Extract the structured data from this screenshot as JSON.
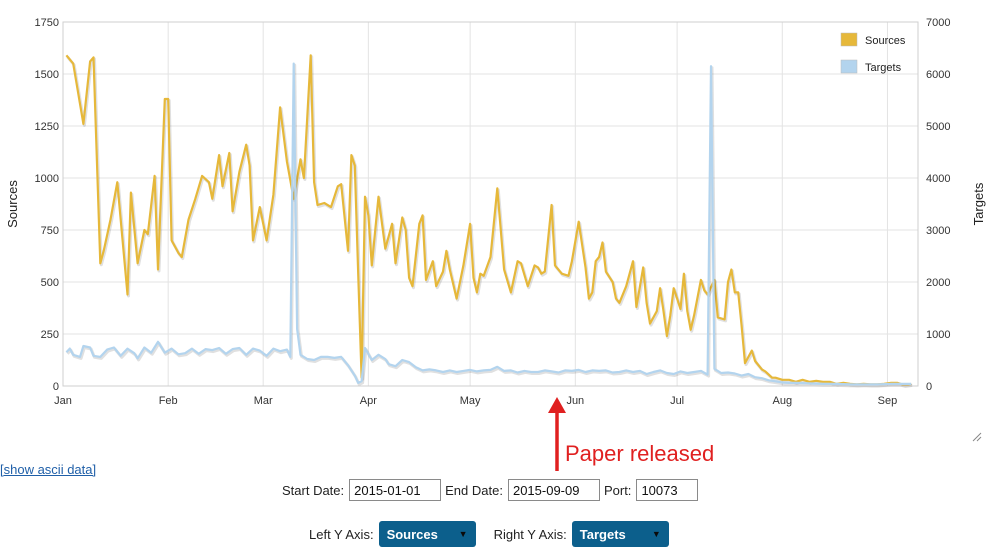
{
  "chart_data": {
    "type": "line",
    "dual_axis": true,
    "x_start": "2015-01-01",
    "x_end": "2015-09-09",
    "x_tick_labels": [
      "Jan",
      "Feb",
      "Mar",
      "Apr",
      "May",
      "Jun",
      "Jul",
      "Aug",
      "Sep"
    ],
    "left_axis": {
      "label": "Sources",
      "ylim": [
        0,
        1750
      ],
      "ticks": [
        "0",
        "250",
        "500",
        "750",
        "1000",
        "1250",
        "1500",
        "1750"
      ]
    },
    "right_axis": {
      "label": "Targets",
      "ylim": [
        0,
        7000
      ],
      "ticks": [
        "0",
        "1000",
        "2000",
        "3000",
        "4000",
        "5000",
        "6000",
        "7000"
      ]
    },
    "grid": true,
    "legend_position": "top-right",
    "series": [
      {
        "name": "Sources",
        "axis": "left",
        "color": "#e6b83a",
        "values": [
          [
            1,
            1590
          ],
          [
            3,
            1550
          ],
          [
            6,
            1260
          ],
          [
            8,
            1560
          ],
          [
            9,
            1580
          ],
          [
            11,
            590
          ],
          [
            12,
            650
          ],
          [
            14,
            800
          ],
          [
            16,
            980
          ],
          [
            19,
            440
          ],
          [
            20,
            930
          ],
          [
            22,
            590
          ],
          [
            24,
            750
          ],
          [
            25,
            730
          ],
          [
            27,
            1010
          ],
          [
            28,
            560
          ],
          [
            30,
            1380
          ],
          [
            31,
            1380
          ],
          [
            32,
            700
          ],
          [
            34,
            640
          ],
          [
            35,
            620
          ],
          [
            37,
            800
          ],
          [
            39,
            900
          ],
          [
            41,
            1010
          ],
          [
            43,
            980
          ],
          [
            44,
            900
          ],
          [
            46,
            1110
          ],
          [
            47,
            960
          ],
          [
            49,
            1120
          ],
          [
            50,
            840
          ],
          [
            52,
            1030
          ],
          [
            54,
            1160
          ],
          [
            55,
            1060
          ],
          [
            56,
            700
          ],
          [
            58,
            860
          ],
          [
            60,
            700
          ],
          [
            62,
            920
          ],
          [
            64,
            1340
          ],
          [
            66,
            1080
          ],
          [
            68,
            900
          ],
          [
            70,
            1090
          ],
          [
            71,
            1000
          ],
          [
            73,
            1590
          ],
          [
            74,
            980
          ],
          [
            75,
            870
          ],
          [
            77,
            880
          ],
          [
            79,
            860
          ],
          [
            81,
            960
          ],
          [
            82,
            970
          ],
          [
            84,
            650
          ],
          [
            85,
            1110
          ],
          [
            86,
            1060
          ],
          [
            87,
            540
          ],
          [
            88,
            40
          ],
          [
            89,
            910
          ],
          [
            90,
            820
          ],
          [
            91,
            580
          ],
          [
            93,
            910
          ],
          [
            95,
            660
          ],
          [
            97,
            780
          ],
          [
            98,
            590
          ],
          [
            100,
            810
          ],
          [
            101,
            750
          ],
          [
            102,
            520
          ],
          [
            103,
            480
          ],
          [
            105,
            780
          ],
          [
            106,
            820
          ],
          [
            107,
            510
          ],
          [
            109,
            600
          ],
          [
            110,
            480
          ],
          [
            112,
            550
          ],
          [
            113,
            650
          ],
          [
            114,
            560
          ],
          [
            116,
            420
          ],
          [
            118,
            580
          ],
          [
            120,
            780
          ],
          [
            121,
            520
          ],
          [
            122,
            450
          ],
          [
            123,
            540
          ],
          [
            124,
            530
          ],
          [
            126,
            620
          ],
          [
            128,
            950
          ],
          [
            130,
            560
          ],
          [
            132,
            450
          ],
          [
            134,
            600
          ],
          [
            135,
            590
          ],
          [
            137,
            480
          ],
          [
            139,
            580
          ],
          [
            140,
            570
          ],
          [
            141,
            540
          ],
          [
            142,
            550
          ],
          [
            144,
            870
          ],
          [
            145,
            580
          ],
          [
            147,
            540
          ],
          [
            149,
            530
          ],
          [
            150,
            600
          ],
          [
            152,
            790
          ],
          [
            154,
            570
          ],
          [
            155,
            420
          ],
          [
            156,
            450
          ],
          [
            157,
            600
          ],
          [
            158,
            620
          ],
          [
            159,
            690
          ],
          [
            160,
            550
          ],
          [
            162,
            500
          ],
          [
            163,
            420
          ],
          [
            164,
            400
          ],
          [
            166,
            480
          ],
          [
            168,
            600
          ],
          [
            169,
            380
          ],
          [
            171,
            570
          ],
          [
            172,
            400
          ],
          [
            173,
            300
          ],
          [
            175,
            360
          ],
          [
            176,
            470
          ],
          [
            177,
            360
          ],
          [
            178,
            240
          ],
          [
            179,
            340
          ],
          [
            180,
            470
          ],
          [
            182,
            370
          ],
          [
            183,
            540
          ],
          [
            184,
            360
          ],
          [
            185,
            270
          ],
          [
            186,
            340
          ],
          [
            188,
            510
          ],
          [
            189,
            460
          ],
          [
            190,
            440
          ],
          [
            192,
            510
          ],
          [
            193,
            330
          ],
          [
            195,
            320
          ],
          [
            196,
            500
          ],
          [
            197,
            560
          ],
          [
            198,
            450
          ],
          [
            199,
            450
          ],
          [
            200,
            290
          ],
          [
            201,
            110
          ],
          [
            203,
            170
          ],
          [
            204,
            120
          ],
          [
            206,
            80
          ],
          [
            207,
            70
          ],
          [
            209,
            40
          ],
          [
            210,
            40
          ],
          [
            212,
            30
          ],
          [
            214,
            30
          ],
          [
            216,
            20
          ],
          [
            218,
            30
          ],
          [
            220,
            20
          ],
          [
            222,
            25
          ],
          [
            224,
            20
          ],
          [
            226,
            20
          ],
          [
            228,
            10
          ],
          [
            230,
            15
          ],
          [
            232,
            10
          ],
          [
            234,
            8
          ],
          [
            236,
            10
          ],
          [
            238,
            8
          ],
          [
            240,
            8
          ],
          [
            242,
            10
          ],
          [
            244,
            15
          ],
          [
            246,
            15
          ],
          [
            248,
            5
          ],
          [
            250,
            10
          ]
        ]
      },
      {
        "name": "Targets",
        "axis": "right",
        "color": "#b3d4ee",
        "values": [
          [
            1,
            650
          ],
          [
            2,
            720
          ],
          [
            3,
            600
          ],
          [
            5,
            560
          ],
          [
            6,
            770
          ],
          [
            8,
            740
          ],
          [
            9,
            580
          ],
          [
            11,
            560
          ],
          [
            13,
            700
          ],
          [
            15,
            740
          ],
          [
            17,
            580
          ],
          [
            19,
            720
          ],
          [
            21,
            630
          ],
          [
            22,
            530
          ],
          [
            24,
            740
          ],
          [
            26,
            640
          ],
          [
            28,
            850
          ],
          [
            30,
            640
          ],
          [
            32,
            720
          ],
          [
            34,
            610
          ],
          [
            36,
            630
          ],
          [
            38,
            720
          ],
          [
            40,
            620
          ],
          [
            42,
            710
          ],
          [
            44,
            690
          ],
          [
            46,
            730
          ],
          [
            48,
            620
          ],
          [
            50,
            710
          ],
          [
            52,
            730
          ],
          [
            54,
            600
          ],
          [
            56,
            720
          ],
          [
            58,
            680
          ],
          [
            60,
            580
          ],
          [
            62,
            720
          ],
          [
            64,
            670
          ],
          [
            66,
            700
          ],
          [
            67,
            560
          ],
          [
            68,
            6200
          ],
          [
            69,
            1100
          ],
          [
            70,
            600
          ],
          [
            72,
            520
          ],
          [
            74,
            500
          ],
          [
            76,
            560
          ],
          [
            78,
            560
          ],
          [
            80,
            540
          ],
          [
            82,
            560
          ],
          [
            84,
            400
          ],
          [
            86,
            200
          ],
          [
            87,
            60
          ],
          [
            88,
            90
          ],
          [
            89,
            730
          ],
          [
            91,
            500
          ],
          [
            93,
            600
          ],
          [
            95,
            520
          ],
          [
            96,
            420
          ],
          [
            98,
            380
          ],
          [
            100,
            500
          ],
          [
            102,
            460
          ],
          [
            104,
            360
          ],
          [
            106,
            300
          ],
          [
            108,
            320
          ],
          [
            110,
            300
          ],
          [
            112,
            270
          ],
          [
            114,
            300
          ],
          [
            116,
            270
          ],
          [
            118,
            290
          ],
          [
            120,
            310
          ],
          [
            122,
            280
          ],
          [
            124,
            300
          ],
          [
            126,
            310
          ],
          [
            128,
            370
          ],
          [
            130,
            290
          ],
          [
            132,
            300
          ],
          [
            134,
            260
          ],
          [
            136,
            290
          ],
          [
            138,
            270
          ],
          [
            140,
            270
          ],
          [
            142,
            300
          ],
          [
            144,
            280
          ],
          [
            146,
            260
          ],
          [
            148,
            300
          ],
          [
            150,
            290
          ],
          [
            152,
            310
          ],
          [
            154,
            270
          ],
          [
            156,
            300
          ],
          [
            158,
            290
          ],
          [
            160,
            300
          ],
          [
            162,
            260
          ],
          [
            164,
            270
          ],
          [
            166,
            300
          ],
          [
            168,
            270
          ],
          [
            170,
            290
          ],
          [
            172,
            230
          ],
          [
            174,
            270
          ],
          [
            176,
            300
          ],
          [
            178,
            250
          ],
          [
            180,
            230
          ],
          [
            182,
            280
          ],
          [
            184,
            250
          ],
          [
            186,
            270
          ],
          [
            188,
            290
          ],
          [
            190,
            220
          ],
          [
            191,
            6150
          ],
          [
            192,
            330
          ],
          [
            194,
            250
          ],
          [
            196,
            260
          ],
          [
            198,
            240
          ],
          [
            200,
            200
          ],
          [
            202,
            230
          ],
          [
            204,
            170
          ],
          [
            206,
            150
          ],
          [
            208,
            110
          ],
          [
            210,
            90
          ],
          [
            212,
            70
          ],
          [
            214,
            60
          ],
          [
            216,
            60
          ],
          [
            220,
            50
          ],
          [
            224,
            40
          ],
          [
            228,
            40
          ],
          [
            232,
            30
          ],
          [
            236,
            30
          ],
          [
            240,
            30
          ],
          [
            244,
            40
          ],
          [
            248,
            40
          ],
          [
            250,
            40
          ]
        ]
      }
    ]
  },
  "ui": {
    "ascii_link": "[show ascii data]",
    "start_date_label": "Start Date:",
    "start_date": "2015-01-01",
    "end_date_label": "End Date:",
    "end_date": "2015-09-09",
    "port_label": "Port:",
    "port": "10073",
    "left_y_label": "Left Y Axis:",
    "left_y_value": "Sources",
    "right_y_label": "Right Y Axis:",
    "right_y_value": "Targets",
    "annotation": "Paper released",
    "annotation_color": "#e02020"
  }
}
